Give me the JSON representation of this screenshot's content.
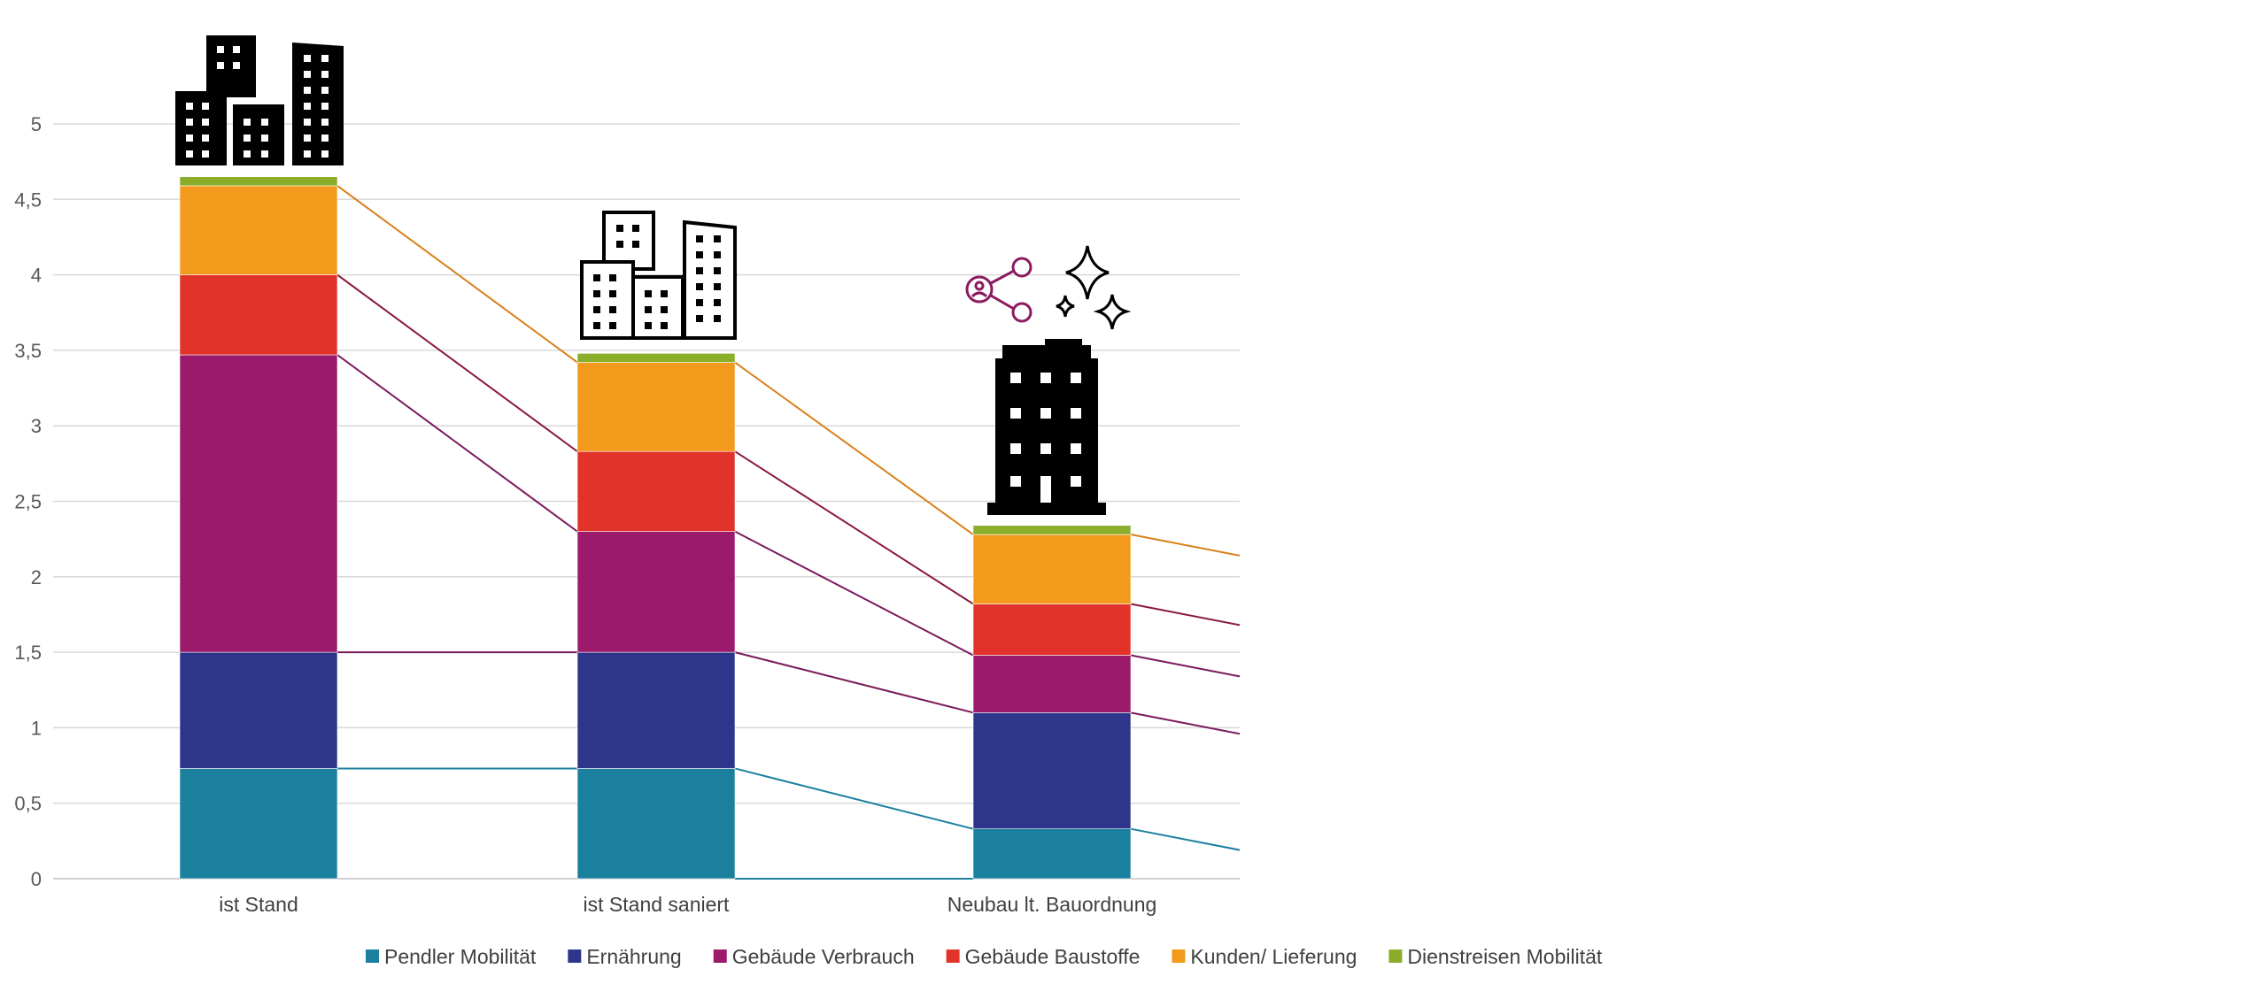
{
  "chart_data": {
    "type": "bar",
    "stacked": true,
    "categories": [
      "ist Stand",
      "ist Stand saniert",
      "Neubau lt. Bauordnung"
    ],
    "series": [
      {
        "name": "Pendler Mobilität",
        "color": "#1A809E",
        "values": [
          0.73,
          0.73,
          0.33
        ]
      },
      {
        "name": "Ernährung",
        "color": "#2E368C",
        "values": [
          0.77,
          0.77,
          0.77
        ]
      },
      {
        "name": "Gebäude Verbrauch",
        "color": "#9C1A6C",
        "values": [
          1.97,
          0.8,
          0.38
        ]
      },
      {
        "name": "Gebäude Baustoffe",
        "color": "#E2332B",
        "values": [
          0.53,
          0.53,
          0.34
        ]
      },
      {
        "name": "Kunden/ Lieferung",
        "color": "#F39A1C",
        "values": [
          0.59,
          0.59,
          0.46
        ]
      },
      {
        "name": "Dienstreisen Mobilität",
        "color": "#8AAE2A",
        "values": [
          0.06,
          0.06,
          0.06
        ]
      }
    ],
    "ylim": [
      0,
      5.5
    ],
    "yticks": [
      "0",
      "0,5",
      "1",
      "1,5",
      "2",
      "2,5",
      "3",
      "3,5",
      "4",
      "4,5",
      "5"
    ],
    "grid": true,
    "legend": "bottom",
    "xlabel": "",
    "ylabel": "",
    "title": ""
  }
}
